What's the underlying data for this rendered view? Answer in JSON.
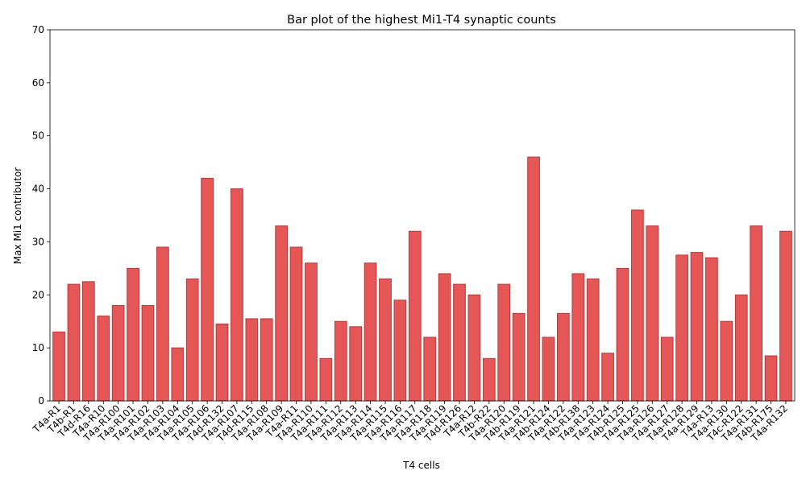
{
  "chart_data": {
    "type": "bar",
    "title": "Bar plot of the highest Mi1-T4 synaptic counts",
    "xlabel": "T4 cells",
    "ylabel": "Max Mi1 contributor",
    "ylim": [
      0,
      70
    ],
    "yticks": [
      0,
      10,
      20,
      30,
      40,
      50,
      60,
      70
    ],
    "grid": false,
    "bar_color": "#e45756",
    "bar_edge_color": "#b73a3a",
    "categories": [
      "T4a-R1",
      "T4b-R1",
      "T4d-R16",
      "T4a-R10",
      "T4a-R100",
      "T4a-R101",
      "T4a-R102",
      "T4a-R103",
      "T4a-R104",
      "T4a-R105",
      "T4a-R106",
      "T4d-R132",
      "T4a-R107",
      "T4d-R115",
      "T4a-R108",
      "T4a-R109",
      "T4a-R11",
      "T4a-R110",
      "T4a-R111",
      "T4a-R112",
      "T4a-R113",
      "T4a-R114",
      "T4a-R115",
      "T4a-R116",
      "T4a-R117",
      "T4a-R118",
      "T4a-R119",
      "T4d-R126",
      "T4a-R12",
      "T4b-R22",
      "T4a-R120",
      "T4b-R119",
      "T4a-R121",
      "T4b-R124",
      "T4a-R122",
      "T4b-R138",
      "T4a-R123",
      "T4a-R124",
      "T4b-R125",
      "T4a-R125",
      "T4a-R126",
      "T4a-R127",
      "T4a-R128",
      "T4a-R129",
      "T4a-R13",
      "T4a-R130",
      "T4c-R122",
      "T4a-R131",
      "T4b-R175",
      "T4a-R132"
    ],
    "values": [
      13,
      22,
      22.5,
      16,
      18,
      25,
      18,
      29,
      10,
      23,
      42,
      14.5,
      40,
      15.5,
      15.5,
      33,
      29,
      26,
      8,
      15,
      14,
      26,
      23,
      19,
      32,
      12,
      24,
      22,
      20,
      8,
      22,
      16.5,
      46,
      12,
      16.5,
      24,
      23,
      9,
      25,
      36,
      33,
      12,
      27.5,
      28,
      27,
      15,
      20,
      33,
      8.5,
      32
    ]
  }
}
